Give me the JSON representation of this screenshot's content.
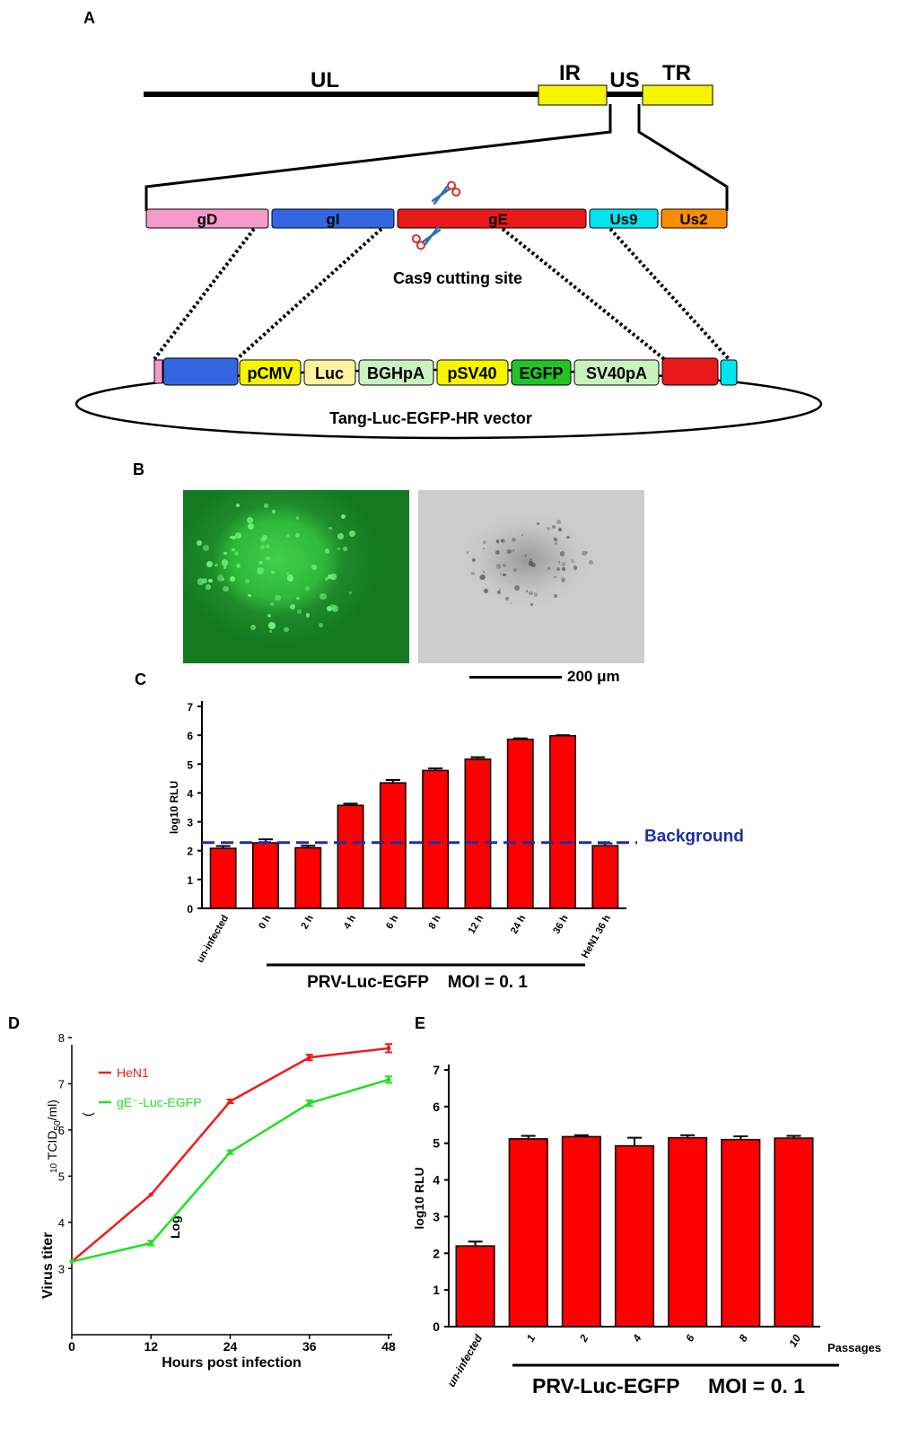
{
  "panels": {
    "a": "A",
    "b": "B",
    "c": "C",
    "d": "D",
    "e": "E"
  },
  "genome": {
    "ul": "UL",
    "ir": "IR",
    "us": "US",
    "tr": "TR",
    "genes": [
      "gD",
      "gI",
      "gE",
      "Us9",
      "Us2"
    ],
    "cas9_label": "Cas9 cutting site",
    "vector_elements": [
      "pCMV",
      "Luc",
      "BGHpA",
      "pSV40",
      "EGFP",
      "SV40pA"
    ],
    "vector_name": "Tang-Luc-EGFP-HR vector",
    "colors": {
      "gD": "#f49ac9",
      "gI": "#3366e0",
      "gE": "#e8191a",
      "Us9": "#00e5ee",
      "Us2": "#ff8c00",
      "yellow": "#f5f500",
      "light_yellow": "#fff3a0",
      "light_green": "#c8f2c0",
      "egfp": "#22c322"
    }
  },
  "microscopy": {
    "scale_bar": "200 μm"
  },
  "chart_data": [
    {
      "type": "bar",
      "panel": "C",
      "categories": [
        "un-infected",
        "0 h",
        "2 h",
        "4 h",
        "6 h",
        "8 h",
        "12 h",
        "24 h",
        "36 h",
        "HeN1 36 h"
      ],
      "values": [
        2.08,
        2.27,
        2.1,
        3.57,
        4.35,
        4.78,
        5.17,
        5.86,
        5.98,
        2.17
      ],
      "errors": [
        0.08,
        0.12,
        0.07,
        0.06,
        0.1,
        0.07,
        0.07,
        0.03,
        0.02,
        0.08
      ],
      "ylabel": "log10 RLU",
      "ylim": [
        0,
        7
      ],
      "yticks": [
        0,
        1,
        2,
        3,
        4,
        5,
        6,
        7
      ],
      "background_line": {
        "value": 2.28,
        "label": "Background"
      },
      "group_label": "PRV-Luc-EGFP    MOI = 0. 1",
      "colors": {
        "bar": "#ff0000",
        "background": "#1f2fa0"
      }
    },
    {
      "type": "line",
      "panel": "D",
      "x": [
        0,
        12,
        24,
        36,
        48
      ],
      "series": [
        {
          "name": "HeN1",
          "values": [
            3.15,
            4.6,
            6.62,
            7.57,
            7.77
          ],
          "errors": [
            0.0,
            0.0,
            0.04,
            0.06,
            0.09
          ],
          "color": "#ee1c1c"
        },
        {
          "name": "gE⁻-Luc-EGFP",
          "values": [
            3.15,
            3.55,
            5.52,
            6.58,
            7.09
          ],
          "errors": [
            0.0,
            0.05,
            0.04,
            0.06,
            0.07
          ],
          "color": "#22e022"
        }
      ],
      "xlabel": "Hours post infection",
      "ylabel_parts": [
        "Virus titer",
        "(",
        "Log",
        "10",
        " TCID",
        "50",
        "/ml",
        ")"
      ],
      "xticks": [
        0,
        12,
        24,
        36,
        48
      ],
      "yticks": [
        3,
        4,
        5,
        6,
        7,
        8
      ],
      "xlim": [
        0,
        48
      ],
      "ylim": [
        1.8,
        8
      ],
      "legend": "top-left"
    },
    {
      "type": "bar",
      "panel": "E",
      "categories": [
        "un-infected",
        "1",
        "2",
        "4",
        "6",
        "8",
        "10"
      ],
      "values": [
        2.2,
        5.12,
        5.18,
        4.93,
        5.15,
        5.1,
        5.14
      ],
      "errors": [
        0.12,
        0.08,
        0.04,
        0.22,
        0.07,
        0.09,
        0.06
      ],
      "ylabel": "log10 RLU",
      "ylim": [
        0,
        7
      ],
      "yticks": [
        0,
        1,
        2,
        3,
        4,
        5,
        6,
        7
      ],
      "x_suffix": "Passages",
      "group_label": "PRV-Luc-EGFP     MOI = 0. 1",
      "colors": {
        "bar": "#ff0000"
      }
    }
  ]
}
